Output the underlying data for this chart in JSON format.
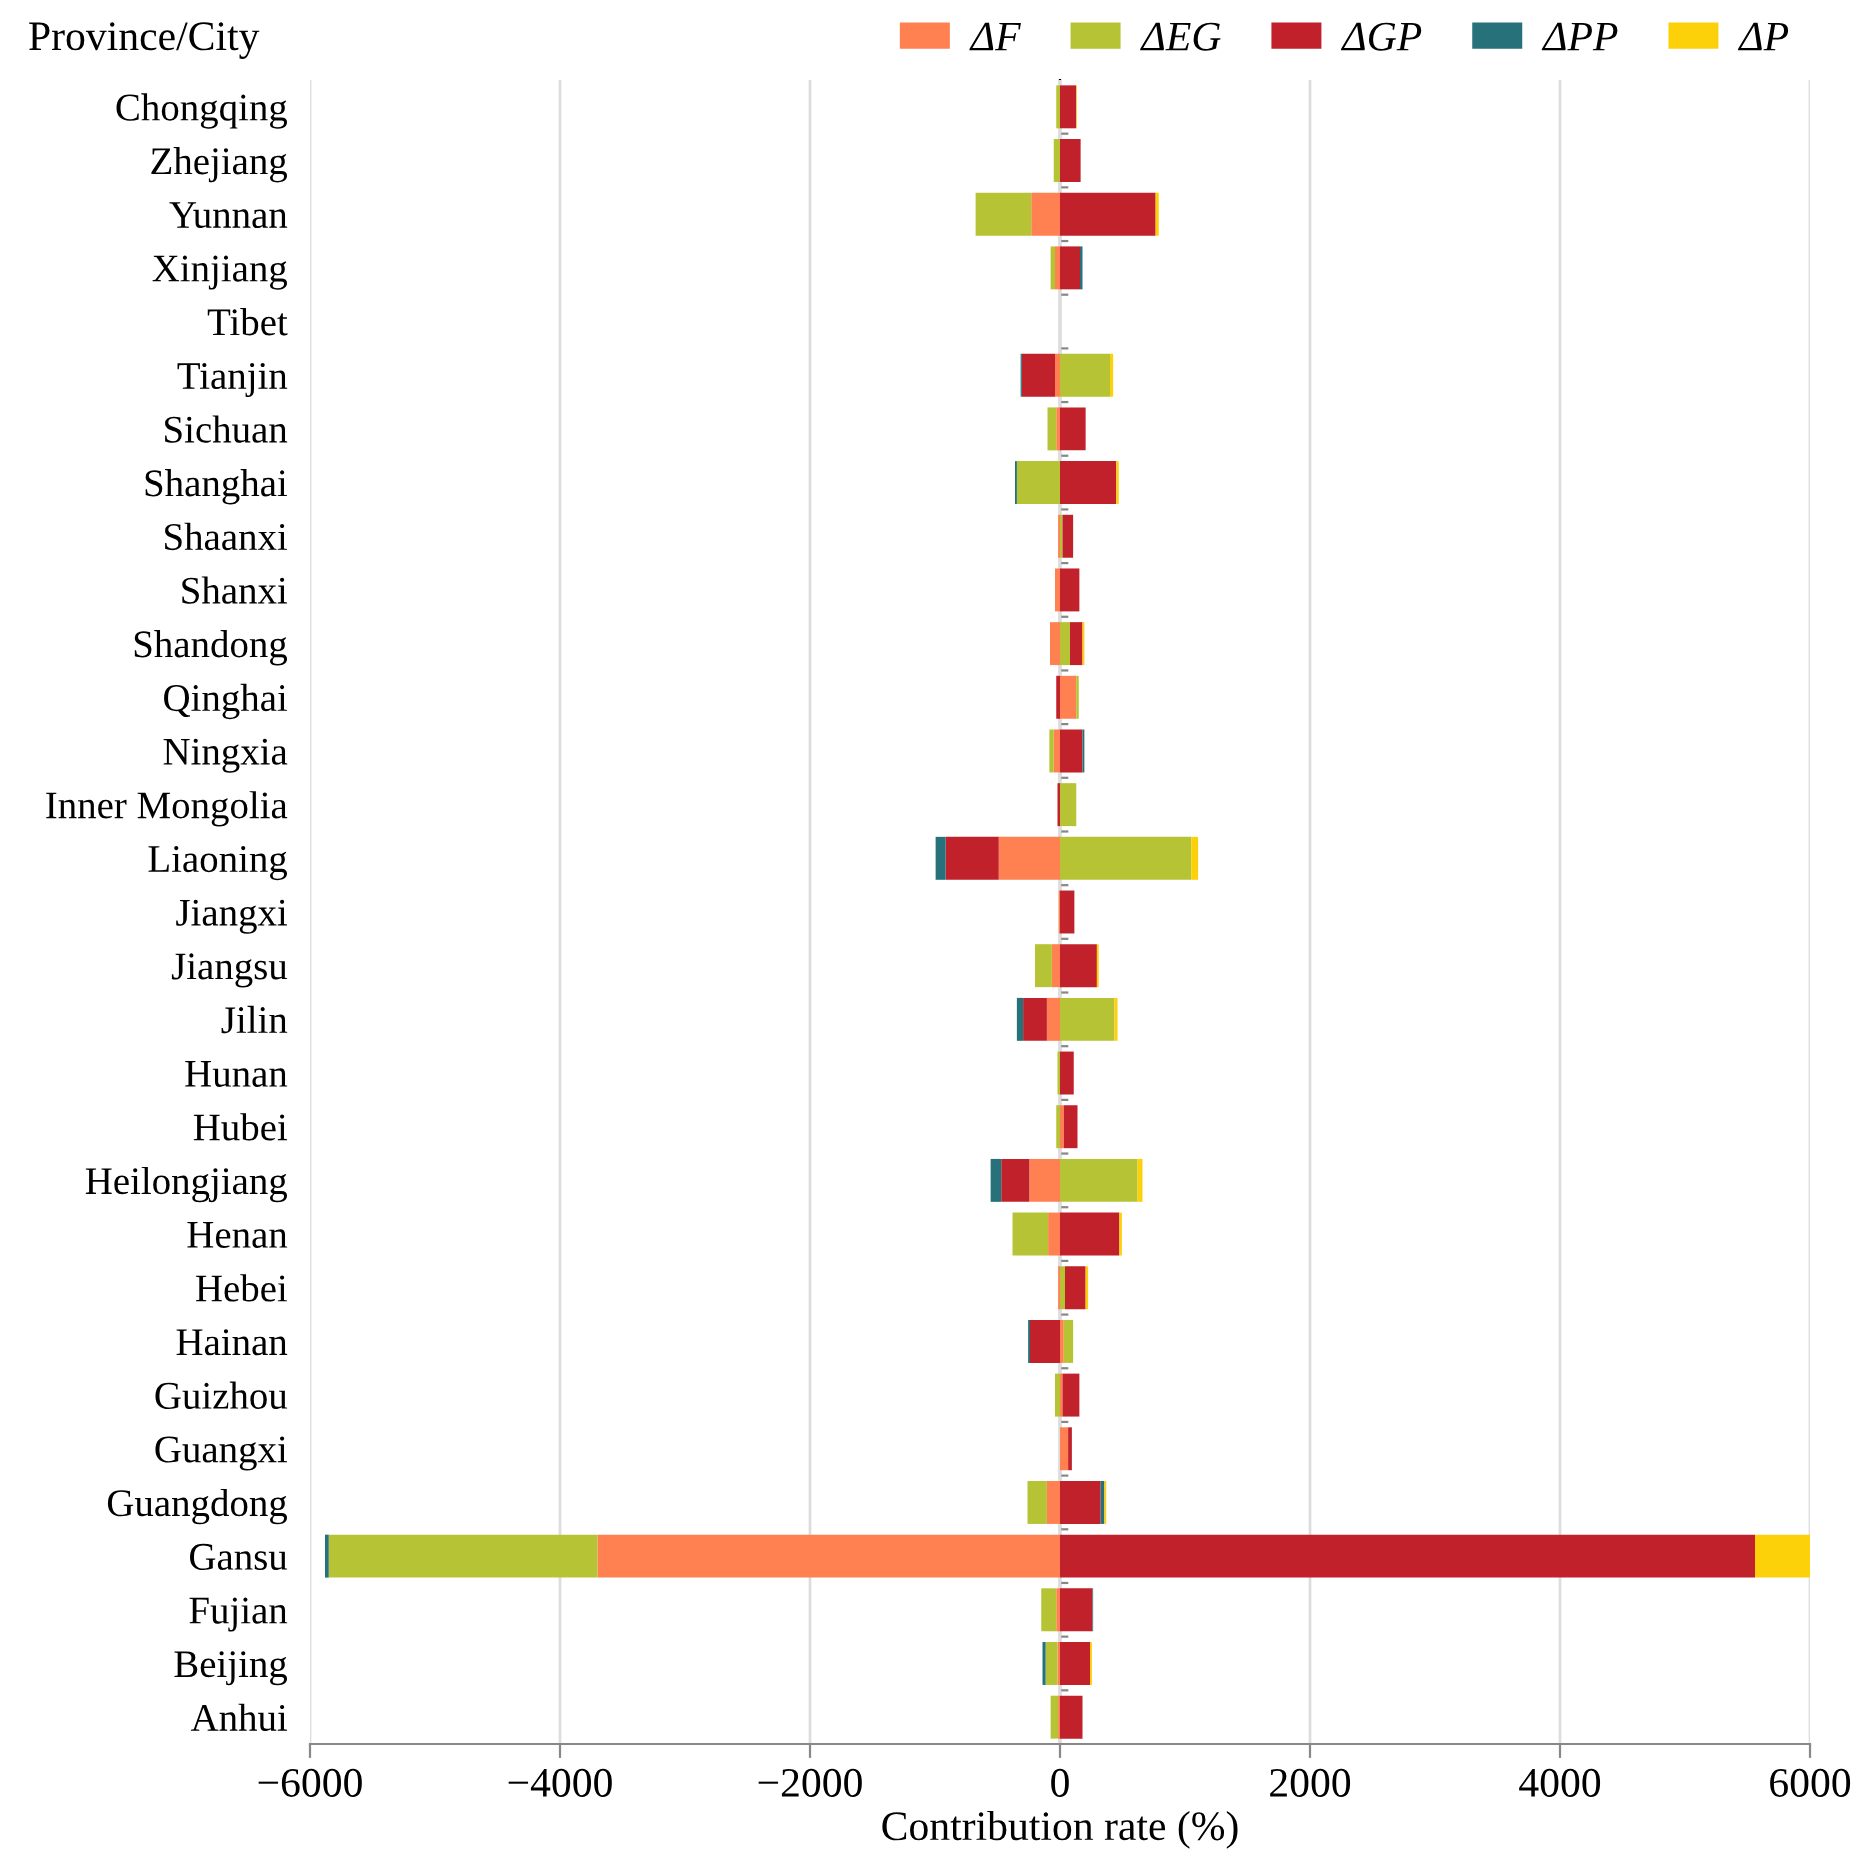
{
  "chart_data": {
    "type": "bar",
    "orientation": "horizontal",
    "stacked": true,
    "ylabel": "Province/City",
    "xlabel": "Contribution rate (%)",
    "categories": [
      "Chongqing",
      "Zhejiang",
      "Yunnan",
      "Xinjiang",
      "Tibet",
      "Tianjin",
      "Sichuan",
      "Shanghai",
      "Shaanxi",
      "Shanxi",
      "Shandong",
      "Qinghai",
      "Ningxia",
      "Inner Mongolia",
      "Liaoning",
      "Jiangxi",
      "Jiangsu",
      "Jilin",
      "Hunan",
      "Hubei",
      "Heilongjiang",
      "Henan",
      "Hebei",
      "Hainan",
      "Guizhou",
      "Guangxi",
      "Guangdong",
      "Gansu",
      "Fujian",
      "Beijing",
      "Anhui"
    ],
    "series": [
      {
        "name": "ΔF",
        "color": "#ff8050",
        "values": [
          0,
          0,
          -230,
          -40,
          0,
          -40,
          -30,
          0,
          -15,
          -40,
          -80,
          130,
          -50,
          0,
          -490,
          -10,
          -65,
          -105,
          0,
          30,
          -245,
          -95,
          -15,
          30,
          20,
          65,
          -105,
          -3700,
          -30,
          -20,
          -15
        ]
      },
      {
        "name": "ΔEG",
        "color": "#b5c334",
        "values": [
          -30,
          -50,
          -445,
          -35,
          0,
          400,
          -70,
          -345,
          20,
          0,
          80,
          20,
          -35,
          130,
          1050,
          0,
          -135,
          435,
          -20,
          -30,
          620,
          -285,
          40,
          75,
          -40,
          0,
          -155,
          -2150,
          -120,
          -95,
          -60
        ]
      },
      {
        "name": "ΔGP",
        "color": "#c0212b",
        "values": [
          130,
          165,
          765,
          160,
          0,
          -265,
          205,
          450,
          85,
          155,
          100,
          -30,
          180,
          -20,
          -425,
          115,
          295,
          -190,
          110,
          110,
          -225,
          475,
          165,
          -240,
          135,
          30,
          325,
          5560,
          260,
          240,
          180
        ]
      },
      {
        "name": "ΔPP",
        "color": "#26717a",
        "values": [
          0,
          0,
          0,
          20,
          0,
          -10,
          0,
          -15,
          0,
          0,
          0,
          0,
          15,
          0,
          -80,
          0,
          0,
          -50,
          0,
          0,
          -85,
          0,
          0,
          -15,
          0,
          0,
          30,
          -30,
          5,
          -25,
          0
        ]
      },
      {
        "name": "ΔP",
        "color": "#fdd10a",
        "values": [
          5,
          0,
          25,
          0,
          0,
          25,
          0,
          20,
          0,
          0,
          15,
          0,
          0,
          0,
          55,
          0,
          15,
          25,
          0,
          0,
          40,
          20,
          20,
          0,
          0,
          0,
          15,
          440,
          0,
          15,
          0
        ]
      }
    ],
    "xlim": [
      -6000,
      6000
    ],
    "xticks": [
      -6000,
      -4000,
      -2000,
      0,
      2000,
      4000,
      6000
    ],
    "grid": "x",
    "legend": "top right"
  }
}
